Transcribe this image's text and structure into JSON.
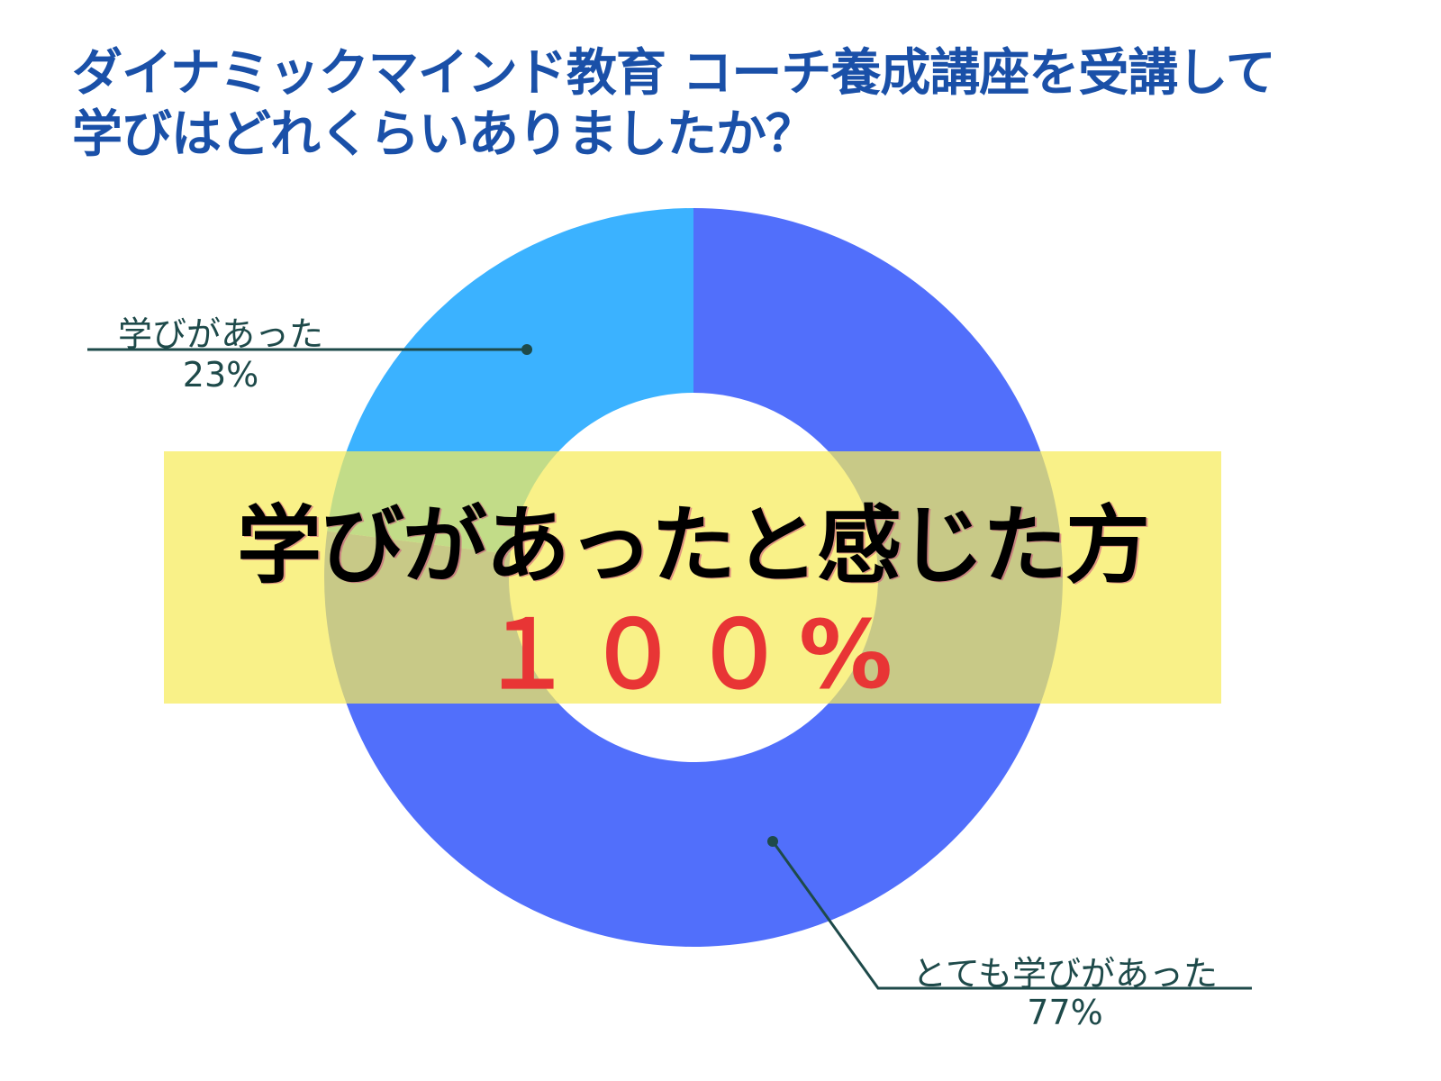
{
  "chart_data": {
    "type": "pie",
    "donut": true,
    "title_lines": [
      "ダイナミックマインド教育 コーチ養成講座を受講して",
      "学びはどれくらいありましたか？"
    ],
    "slices": [
      {
        "label": "とても学びがあった",
        "value": 77,
        "value_label": "77%",
        "color": "#516FFB"
      },
      {
        "label": "学びがあった",
        "value": 23,
        "value_label": "23%",
        "color": "#3BB2FF"
      }
    ],
    "annotation": {
      "headline": "学びがあったと感じた方",
      "value": "１００%",
      "band_color": "#F7EC5A",
      "value_color": "#E83535"
    }
  }
}
